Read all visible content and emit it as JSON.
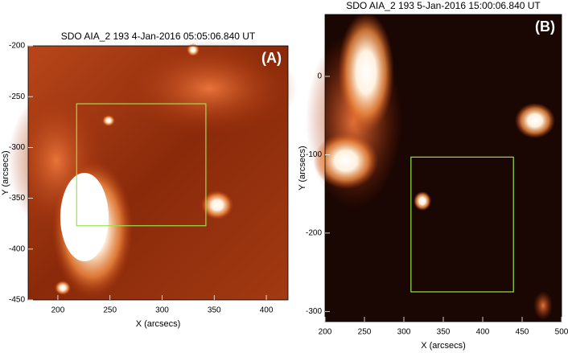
{
  "chart_data": [
    {
      "type": "image",
      "title": "SDO AIA_2 193  4-Jan-2016 05:05:06.840 UT",
      "panel_label": "(A)",
      "xlabel": "X (arcsecs)",
      "ylabel": "Y (arcsecs)",
      "xlim": [
        171.5,
        420.8
      ],
      "ylim": [
        -450,
        -200
      ],
      "xticks": [
        200,
        250,
        300,
        350,
        400
      ],
      "yticks": [
        -450,
        -400,
        -350,
        -300,
        -250,
        -200
      ],
      "box": {
        "x": [
          218,
          342
        ],
        "y": [
          -377,
          -257
        ],
        "color": "#9be04a"
      }
    },
    {
      "type": "image",
      "title": "SDO AIA_2 193  5-Jan-2016 15:00:06.840 UT",
      "panel_label": "(B)",
      "xlabel": "X (arcsecs)",
      "ylabel": "Y (arcsecs)",
      "xlim": [
        200,
        500
      ],
      "ylim": [
        -313,
        79
      ],
      "xticks": [
        200,
        250,
        300,
        350,
        400,
        450,
        500
      ],
      "yticks": [
        -300,
        -200,
        -100,
        0
      ],
      "box": {
        "x": [
          309,
          439
        ],
        "y": [
          -275,
          -103
        ],
        "color": "#9be04a"
      }
    }
  ]
}
